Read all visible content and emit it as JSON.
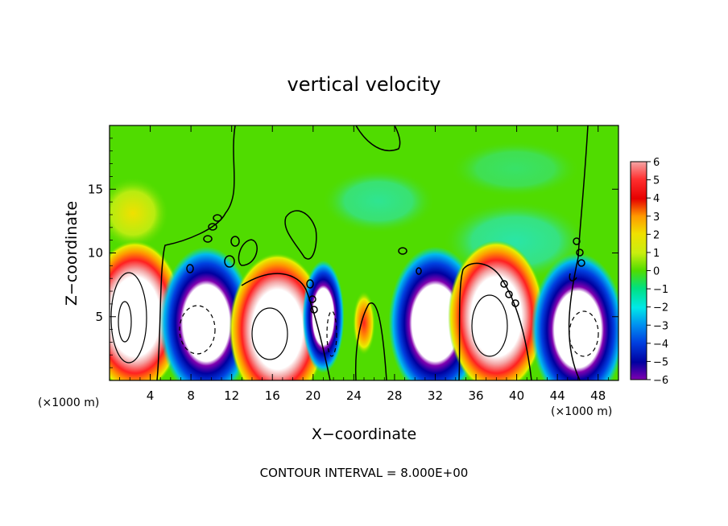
{
  "chart_data": {
    "type": "heatmap",
    "title": "vertical velocity",
    "xlabel": "X−coordinate",
    "ylabel": "Z−coordinate",
    "x_unit_label": "(×1000 m)",
    "x_unit_label_right": "(×1000 m)",
    "xlim": [
      0,
      50
    ],
    "ylim": [
      0,
      20
    ],
    "x_ticks": [
      4,
      8,
      12,
      16,
      20,
      24,
      28,
      32,
      36,
      40,
      44,
      48
    ],
    "x_tick_labels": [
      "4",
      "8",
      "12",
      "16",
      "20",
      "24",
      "28",
      "32",
      "36",
      "40",
      "44",
      "48"
    ],
    "y_ticks": [
      5,
      10,
      15
    ],
    "y_tick_labels": [
      "5",
      "10",
      "15"
    ],
    "colorbar": {
      "min": -6,
      "max": 6,
      "labels": [
        "6",
        "5",
        "4",
        "3",
        "2",
        "1",
        "0",
        "−1",
        "−2",
        "−3",
        "−4",
        "−5",
        "−6"
      ],
      "colors": [
        "#f4a6a6",
        "#ff3030",
        "#e60000",
        "#ff9900",
        "#f0e000",
        "#c8ee10",
        "#50dc00",
        "#00e080",
        "#00e8e8",
        "#0090f0",
        "#0040e0",
        "#0000a0",
        "#8000b0"
      ]
    },
    "cells": [
      {
        "x": 2.5,
        "z": 5.0,
        "w": 9.0,
        "note": "updraft"
      },
      {
        "x": 9.5,
        "z": 4.5,
        "w": -9.0,
        "note": "downdraft"
      },
      {
        "x": 16.5,
        "z": 4.0,
        "w": 9.0,
        "note": "updraft"
      },
      {
        "x": 21.0,
        "z": 5.0,
        "w": -7.0,
        "note": "downdraft"
      },
      {
        "x": 25.0,
        "z": 4.5,
        "w": 3.0,
        "note": "updraft"
      },
      {
        "x": 32.0,
        "z": 4.5,
        "w": -9.0,
        "note": "downdraft"
      },
      {
        "x": 38.0,
        "z": 5.0,
        "w": 9.0,
        "note": "updraft"
      },
      {
        "x": 46.0,
        "z": 4.0,
        "w": -9.0,
        "note": "downdraft"
      }
    ],
    "footer": "CONTOUR INTERVAL = 8.000E+00",
    "grid": false,
    "legend_position": "right"
  }
}
